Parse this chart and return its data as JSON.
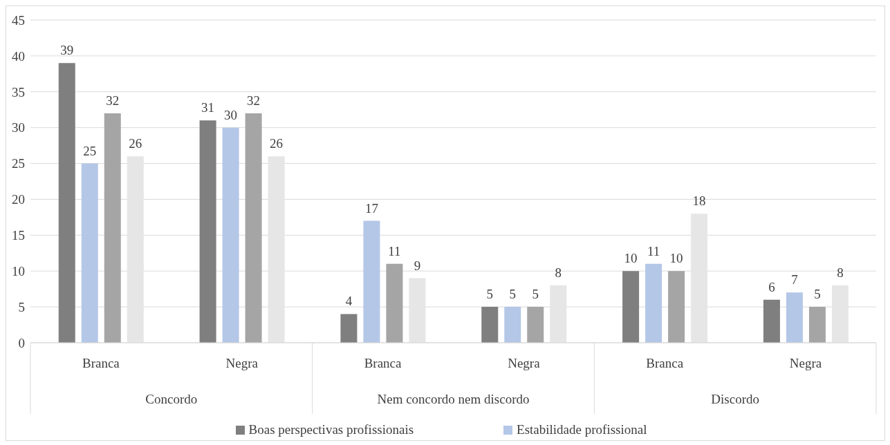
{
  "chart_data": {
    "type": "bar",
    "categories": [
      "Branca",
      "Negra",
      "Branca",
      "Negra",
      "Branca",
      "Negra"
    ],
    "annotations": [
      "Concordo",
      "Nem concordo nem discordo",
      "Discordo"
    ],
    "series": [
      {
        "name": "Boas perspectivas profissionais",
        "color": "#7f7f7f",
        "values": [
          39,
          31,
          4,
          5,
          10,
          6
        ]
      },
      {
        "name": "Estabilidade profissional",
        "color": "#b4c7e7",
        "values": [
          25,
          30,
          17,
          5,
          11,
          7
        ]
      },
      {
        "color": "#a5a5a5",
        "values": [
          32,
          32,
          11,
          5,
          10,
          5
        ]
      },
      {
        "color": "#e7e6e6",
        "values": [
          26,
          26,
          9,
          8,
          18,
          8
        ]
      }
    ],
    "ylim": [
      0,
      45
    ],
    "yticks": [
      0,
      5,
      10,
      15,
      20,
      25,
      30,
      35,
      40,
      45
    ],
    "grid": "y",
    "data_labels": true,
    "legend": "bottom"
  }
}
